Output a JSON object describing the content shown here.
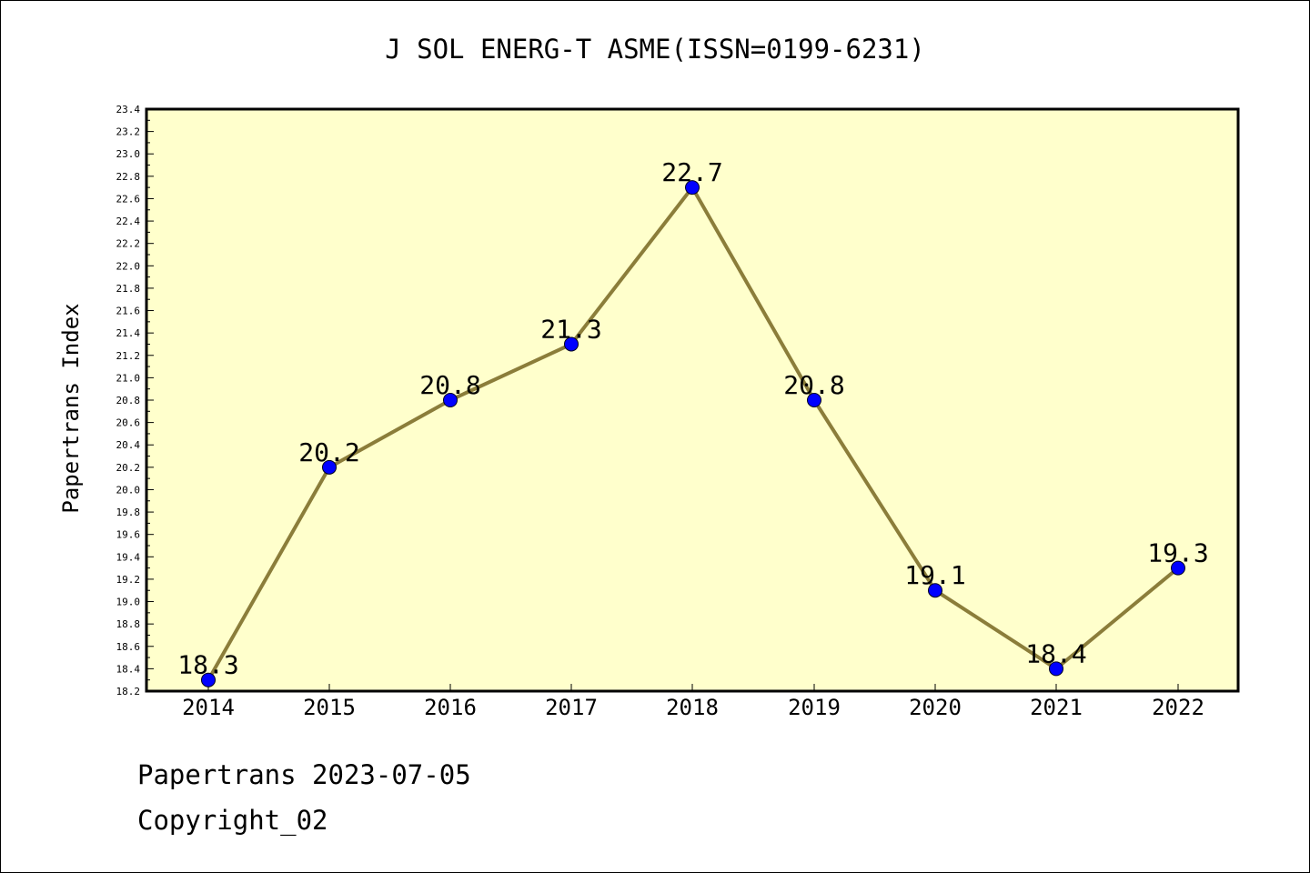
{
  "chart_data": {
    "type": "line",
    "title": "J SOL ENERG-T ASME(ISSN=0199-6231)",
    "xlabel": "",
    "ylabel": "Papertrans Index",
    "categories": [
      "2014",
      "2015",
      "2016",
      "2017",
      "2018",
      "2019",
      "2020",
      "2021",
      "2022"
    ],
    "series": [
      {
        "values": [
          18.3,
          20.2,
          20.8,
          21.3,
          22.7,
          20.8,
          19.1,
          18.4,
          19.3
        ],
        "labels": [
          "18.3",
          "20.2",
          "20.8",
          "21.3",
          "22.7",
          "20.8",
          "19.1",
          "18.4",
          "19.3"
        ]
      }
    ],
    "ylim": [
      18.2,
      23.4
    ],
    "ytick_step": 0.2,
    "grid": false,
    "colors": {
      "plot_background": "#ffffcc",
      "line": "#8b7d3a",
      "marker": "#0000ff",
      "frame": "#000000"
    }
  },
  "footer": {
    "source_line": "Papertrans 2023-07-05",
    "copyright_line": "Copyright_02"
  }
}
